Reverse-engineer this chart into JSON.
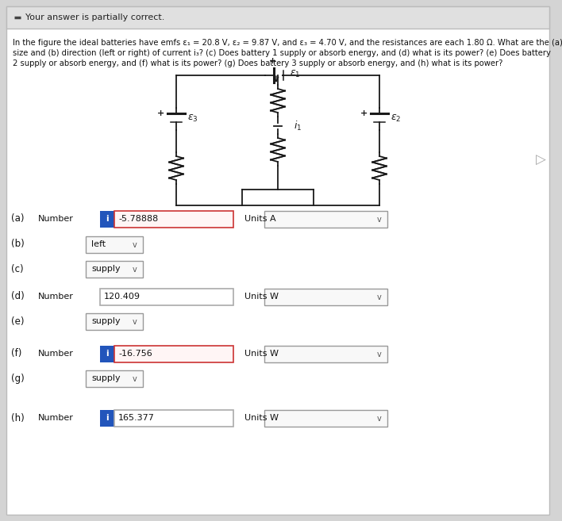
{
  "bg_color": "#d4d4d4",
  "header_bg": "#e8e8e8",
  "header_text": "Your answer is partially correct.",
  "body_bg": "#f5f5f5",
  "problem_lines": [
    "In the figure the ideal batteries have emfs ε₁ = 20.8 V, ε₂ = 9.87 V, and ε₃ = 4.70 V, and the resistances are each 1.80 Ω. What are the (a)",
    "size and (b) direction (left or right) of current i₃? (c) Does battery 1 supply or absorb energy, and (d) what is its power? (e) Does battery",
    "2 supply or absorb energy, and (f) what is its power? (g) Does battery 3 supply or absorb energy, and (h) what is its power?"
  ],
  "wire_color": "#1a1a1a",
  "rows": [
    {
      "label": "(a)",
      "extra": "Number",
      "type": "number_units",
      "has_icon": true,
      "icon_color": "#2255bb",
      "value": "-5.78888",
      "units": "A",
      "border_color": "#cc3333"
    },
    {
      "label": "(b)",
      "extra": "",
      "type": "dropdown_only",
      "has_icon": false,
      "value": "left",
      "border_color": "#aaaaaa"
    },
    {
      "label": "(c)",
      "extra": "",
      "type": "dropdown_only",
      "has_icon": false,
      "value": "supply",
      "border_color": "#aaaaaa"
    },
    {
      "label": "(d)",
      "extra": "Number",
      "type": "number_units",
      "has_icon": false,
      "value": "120.409",
      "units": "W",
      "border_color": "#aaaaaa"
    },
    {
      "label": "(e)",
      "extra": "",
      "type": "dropdown_only",
      "has_icon": false,
      "value": "supply",
      "border_color": "#aaaaaa"
    },
    {
      "label": "(f)",
      "extra": "Number",
      "type": "number_units",
      "has_icon": true,
      "icon_color": "#2255bb",
      "value": "-16.756",
      "units": "W",
      "border_color": "#cc3333"
    },
    {
      "label": "(g)",
      "extra": "",
      "type": "dropdown_only",
      "has_icon": false,
      "value": "supply",
      "border_color": "#aaaaaa"
    },
    {
      "label": "(h)",
      "extra": "Number",
      "type": "number_units",
      "has_icon": true,
      "icon_color": "#2255bb",
      "value": "165.377",
      "units": "W",
      "border_color": "#aaaaaa"
    }
  ]
}
